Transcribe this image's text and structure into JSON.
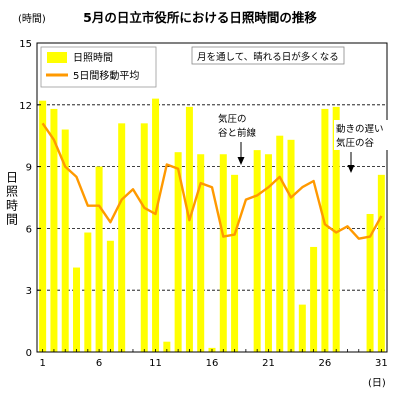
{
  "chart_data": {
    "type": "bar",
    "title": "5月の日立市役所における日照時間の推移",
    "ylabel": "日照時間",
    "yunit": "(時間)",
    "xunit": "(日)",
    "ylim": [
      0,
      15
    ],
    "yticks": [
      0,
      3,
      6,
      9,
      12,
      15
    ],
    "xtick_labels": [
      "1",
      "6",
      "11",
      "16",
      "21",
      "26",
      "31"
    ],
    "grid": "horizontal-dashed",
    "legend_position": "top-left",
    "colors": {
      "bar": "#ffff00",
      "line": "#ff9900",
      "grid": "#000000"
    },
    "categories": [
      1,
      2,
      3,
      4,
      5,
      6,
      7,
      8,
      9,
      10,
      11,
      12,
      13,
      14,
      15,
      16,
      17,
      18,
      19,
      20,
      21,
      22,
      23,
      24,
      25,
      26,
      27,
      28,
      29,
      30,
      31
    ],
    "series": [
      {
        "name": "日照時間",
        "type": "bar",
        "values": [
          12.2,
          11.8,
          10.8,
          4.1,
          5.8,
          9.0,
          5.4,
          11.1,
          0,
          11.1,
          12.3,
          0.5,
          9.7,
          11.9,
          9.6,
          0.2,
          9.6,
          8.6,
          0,
          9.8,
          9.6,
          10.5,
          10.3,
          2.3,
          5.1,
          11.8,
          11.9,
          0,
          0,
          6.7,
          8.6
        ]
      },
      {
        "name": "5日間移動平均",
        "type": "line",
        "values": [
          11.1,
          10.3,
          9.0,
          8.5,
          7.1,
          7.1,
          6.3,
          7.4,
          7.9,
          7.0,
          6.7,
          9.1,
          8.9,
          6.4,
          8.2,
          8.0,
          5.6,
          5.7,
          7.4,
          7.6,
          8.0,
          8.5,
          7.5,
          8.0,
          8.3,
          6.2,
          5.8,
          6.1,
          5.5,
          5.6,
          6.6
        ]
      }
    ],
    "annotations": [
      {
        "lines": [
          "月を通して、晴れる日が多くなる"
        ],
        "boxed": true,
        "arrow": false
      },
      {
        "lines": [
          "気圧の",
          "谷と前線"
        ],
        "boxed": false,
        "arrow": true,
        "arrow_day": 18
      },
      {
        "lines": [
          "動きの遅い",
          "気圧の谷"
        ],
        "boxed": false,
        "arrow": true,
        "arrow_day": 28
      }
    ]
  }
}
